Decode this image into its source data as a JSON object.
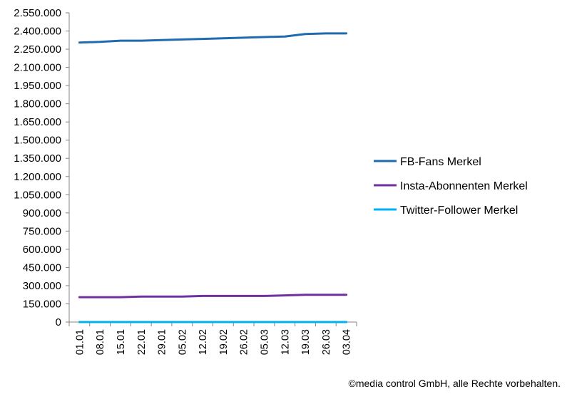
{
  "chart_data": {
    "type": "line",
    "categories": [
      "01.01",
      "08.01",
      "15.01",
      "22.01",
      "29.01",
      "05.02",
      "12.02",
      "19.02",
      "26.02",
      "05.03",
      "12.03",
      "19.03",
      "26.03",
      "03.04"
    ],
    "series": [
      {
        "name": "FB-Fans Merkel",
        "color": "#1f6bb0",
        "values": [
          2305000,
          2310000,
          2320000,
          2320000,
          2325000,
          2330000,
          2335000,
          2340000,
          2345000,
          2350000,
          2355000,
          2375000,
          2380000,
          2380000
        ]
      },
      {
        "name": "Insta-Abonnenten Merkel",
        "color": "#7030a0",
        "values": [
          205000,
          205000,
          205000,
          210000,
          210000,
          210000,
          215000,
          215000,
          215000,
          215000,
          220000,
          225000,
          225000,
          225000
        ]
      },
      {
        "name": "Twitter-Follower Merkel",
        "color": "#00b0f0",
        "values": [
          0,
          0,
          0,
          0,
          0,
          0,
          0,
          0,
          0,
          0,
          0,
          0,
          0,
          0
        ]
      }
    ],
    "y_ticks": [
      "0",
      "150.000",
      "300.000",
      "450.000",
      "600.000",
      "750.000",
      "900.000",
      "1.050.000",
      "1.200.000",
      "1.350.000",
      "1.500.000",
      "1.650.000",
      "1.800.000",
      "1.950.000",
      "2.100.000",
      "2.250.000",
      "2.400.000",
      "2.550.000"
    ],
    "ylim": [
      0,
      2550000
    ],
    "grid": false,
    "legend_position": "right"
  },
  "footer": "©media control GmbH, alle Rechte vorbehalten."
}
